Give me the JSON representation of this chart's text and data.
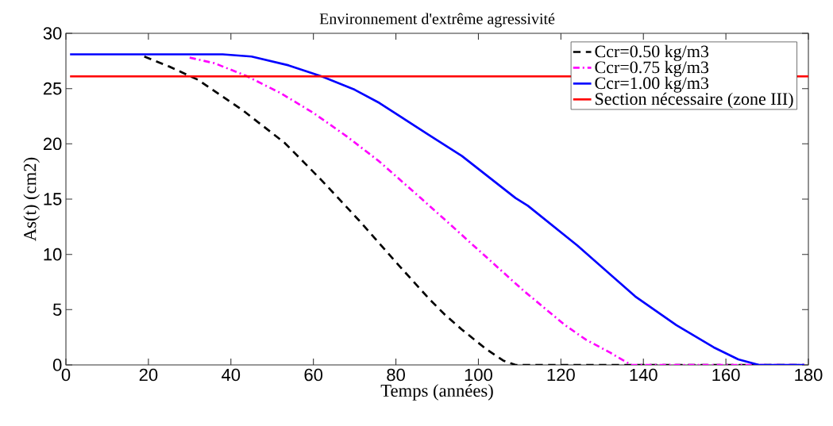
{
  "chart_data": {
    "type": "line",
    "title": "Environnement d'extrême agressivité",
    "xlabel": "Temps (années)",
    "ylabel": "As(t) (cm2)",
    "xlim": [
      0,
      180
    ],
    "xticks": [
      0,
      20,
      40,
      60,
      80,
      100,
      120,
      140,
      160,
      180
    ],
    "ylim": [
      0,
      30
    ],
    "yticks": [
      0,
      5,
      10,
      15,
      20,
      25,
      30
    ],
    "grid": false,
    "legend": "top right",
    "marker": "none",
    "series": [
      {
        "name": "Ccr=0.50 kg/m3",
        "color": "#000000",
        "line_style": "dashed",
        "x": [
          19,
          25,
          32,
          43,
          53,
          62,
          71,
          80,
          88,
          92,
          96,
          102,
          106,
          109,
          120,
          140,
          160,
          179
        ],
        "values": [
          27.9,
          27.0,
          25.8,
          23.0,
          20.1,
          16.7,
          13.1,
          9.3,
          6.0,
          4.5,
          3.2,
          1.4,
          0.4,
          0,
          0,
          0,
          0,
          0
        ]
      },
      {
        "name": "Ccr=0.75 kg/m3",
        "color": "#ff00ff",
        "line_style": "dashdot",
        "x": [
          30,
          36,
          44,
          52,
          60,
          68,
          76,
          86,
          92,
          100,
          111,
          121,
          126,
          132,
          137,
          150,
          165,
          179
        ],
        "values": [
          27.8,
          27.3,
          26.1,
          24.6,
          22.8,
          20.7,
          18.4,
          15.1,
          13.1,
          10.4,
          6.7,
          3.6,
          2.3,
          1.1,
          0,
          0,
          0,
          0
        ]
      },
      {
        "name": "Ccr=1.00 kg/m3",
        "color": "#0000ff",
        "line_style": "solid",
        "x": [
          1,
          20,
          30,
          38,
          45,
          54,
          62,
          70,
          76,
          88,
          96,
          109,
          112,
          124,
          138,
          148,
          157,
          163,
          168,
          179
        ],
        "values": [
          28.1,
          28.1,
          28.1,
          28.1,
          27.9,
          27.1,
          26.1,
          24.9,
          23.7,
          20.8,
          18.9,
          15.1,
          14.4,
          10.8,
          6.2,
          3.6,
          1.6,
          0.5,
          0,
          0
        ]
      },
      {
        "name": "Section nécessaire (zone III)",
        "color": "#ff0000",
        "line_style": "solid",
        "x": [
          1,
          180
        ],
        "values": [
          26.1,
          26.1
        ]
      }
    ]
  }
}
